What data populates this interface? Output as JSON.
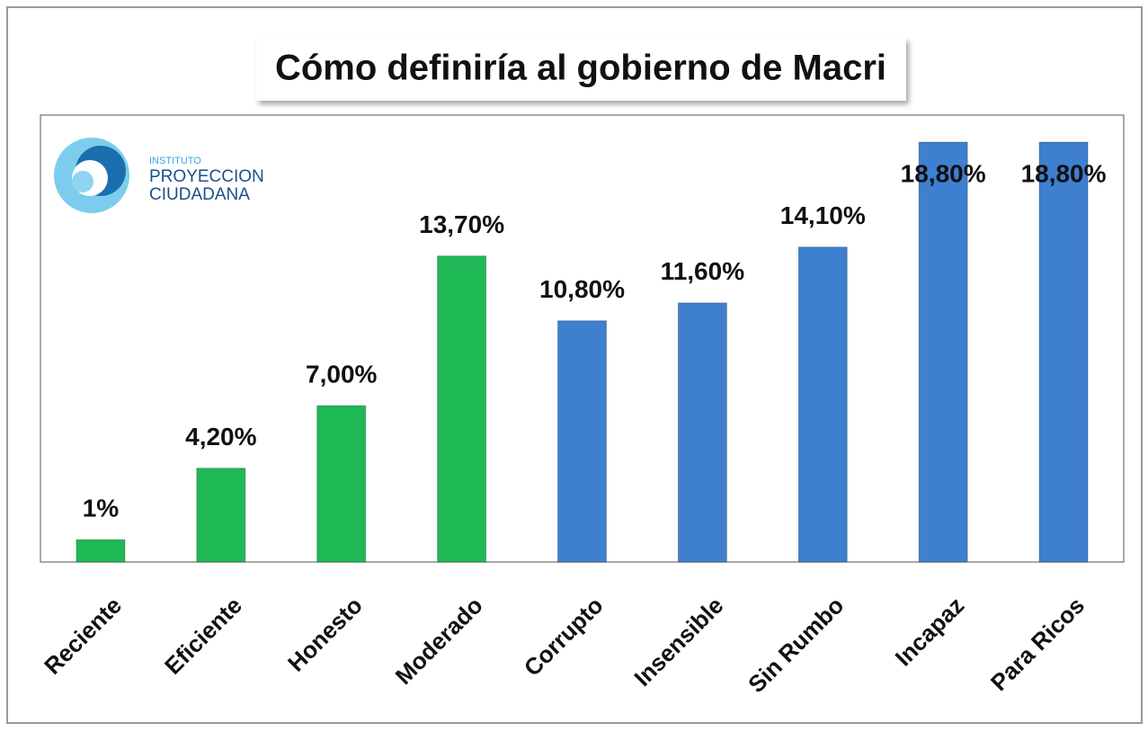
{
  "chart_data": {
    "type": "bar",
    "title": "Cómo definiría al gobierno de Macri",
    "logo": [
      "INSTITUTO",
      "PROYECCION",
      "CIUDADANA"
    ],
    "categories": [
      "Reciente",
      "Eficiente",
      "Honesto",
      "Moderado",
      "Corrupto",
      "Insensible",
      "Sin Rumbo",
      "Incapaz",
      "Para Ricos"
    ],
    "values": [
      1,
      4.2,
      7,
      13.7,
      10.8,
      11.6,
      14.1,
      18.8,
      18.8
    ],
    "value_labels": [
      "1%",
      "4,20%",
      "7,00%",
      "13,70%",
      "10,80%",
      "11,60%",
      "14,10%",
      "18,80%",
      "18,80%"
    ],
    "colors": [
      "#1eb955",
      "#1eb955",
      "#1eb955",
      "#1eb955",
      "#3f7fd0",
      "#3f7fd0",
      "#3f7fd0",
      "#3f7fd0",
      "#3f7fd0"
    ]
  }
}
